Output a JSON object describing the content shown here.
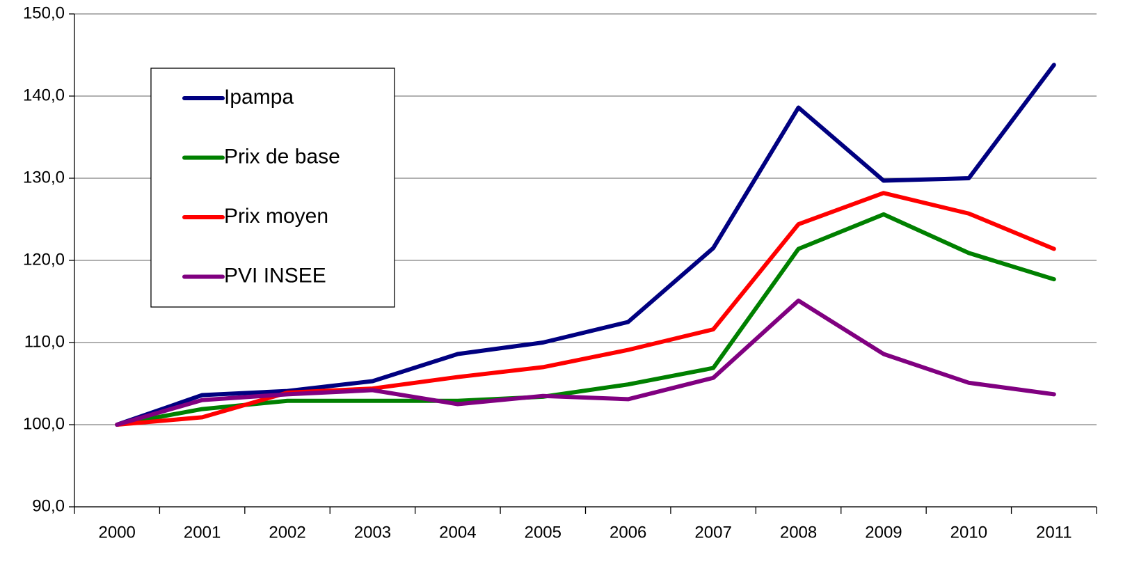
{
  "chart_data": {
    "type": "line",
    "categories": [
      "2000",
      "2001",
      "2002",
      "2003",
      "2004",
      "2005",
      "2006",
      "2007",
      "2008",
      "2009",
      "2010",
      "2011"
    ],
    "series": [
      {
        "name": "Ipampa",
        "color": "#000080",
        "values": [
          100,
          103.6,
          104.1,
          105.3,
          108.6,
          110.0,
          112.5,
          121.5,
          138.6,
          129.7,
          130.0,
          143.8
        ]
      },
      {
        "name": "Prix de base",
        "color": "#008000",
        "values": [
          100,
          101.9,
          102.9,
          102.9,
          102.9,
          103.4,
          104.9,
          106.9,
          121.4,
          125.6,
          120.9,
          117.7
        ]
      },
      {
        "name": "Prix moyen",
        "color": "#ff0000",
        "values": [
          100,
          100.9,
          103.9,
          104.4,
          105.8,
          107.0,
          109.1,
          111.6,
          124.4,
          128.2,
          125.7,
          121.4
        ]
      },
      {
        "name": "PVI INSEE",
        "color": "#800080",
        "values": [
          100,
          103.0,
          103.7,
          104.2,
          102.5,
          103.5,
          103.1,
          105.7,
          115.1,
          108.6,
          105.1,
          103.7
        ]
      }
    ],
    "ylim": [
      90,
      150
    ],
    "yticks": [
      {
        "value": 90,
        "label": "90,0"
      },
      {
        "value": 100,
        "label": "100,0"
      },
      {
        "value": 110,
        "label": "110,0"
      },
      {
        "value": 120,
        "label": "120,0"
      },
      {
        "value": 130,
        "label": "130,0"
      },
      {
        "value": 140,
        "label": "140,0"
      },
      {
        "value": 150,
        "label": "150,0"
      }
    ],
    "grid": true,
    "legend": "upper left"
  }
}
